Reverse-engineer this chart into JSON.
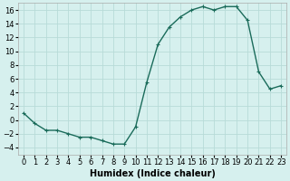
{
  "x": [
    0,
    1,
    2,
    3,
    4,
    5,
    6,
    7,
    8,
    9,
    10,
    11,
    12,
    13,
    14,
    15,
    16,
    17,
    18,
    19,
    20,
    21,
    22,
    23
  ],
  "y": [
    1,
    -0.5,
    -1.5,
    -1.5,
    -2,
    -2.5,
    -2.5,
    -3,
    -3.5,
    -3.5,
    -1,
    5.5,
    11,
    13.5,
    15,
    16,
    16.5,
    16,
    16.5,
    16.5,
    14.5,
    7,
    4.5,
    5
  ],
  "line_color": "#1a6b5a",
  "marker": "+",
  "marker_color": "#1a6b5a",
  "bg_color": "#d6f0ee",
  "grid_color": "#b8dbd8",
  "xlabel": "Humidex (Indice chaleur)",
  "xlim": [
    -0.5,
    23.5
  ],
  "ylim": [
    -5,
    17
  ],
  "yticks": [
    -4,
    -2,
    0,
    2,
    4,
    6,
    8,
    10,
    12,
    14,
    16
  ],
  "xtick_labels": [
    "0",
    "1",
    "2",
    "3",
    "4",
    "5",
    "6",
    "7",
    "8",
    "9",
    "10",
    "11",
    "12",
    "13",
    "14",
    "15",
    "16",
    "17",
    "18",
    "19",
    "20",
    "21",
    "22",
    "23"
  ],
  "fontsize_xlabel": 7,
  "fontsize_ticks": 6,
  "linewidth": 1.0,
  "markersize": 3.5
}
